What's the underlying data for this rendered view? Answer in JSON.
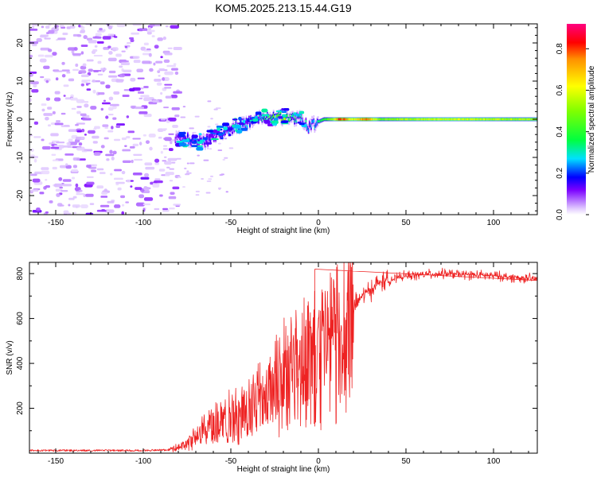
{
  "title": "KOM5.2025.213.15.44.G19",
  "colorbar": {
    "label": "Normalized spectral amplitude",
    "ticks": [
      "0.0",
      "0.2",
      "0.4",
      "0.6",
      "0.8"
    ],
    "tick_values": [
      0.0,
      0.2,
      0.4,
      0.6,
      0.8
    ],
    "range": [
      0,
      0.92
    ],
    "stops": [
      {
        "v": 0.0,
        "color": "#ffffff"
      },
      {
        "v": 0.03,
        "color": "#e0c8ff"
      },
      {
        "v": 0.12,
        "color": "#7a00ff"
      },
      {
        "v": 0.18,
        "color": "#0000ff"
      },
      {
        "v": 0.27,
        "color": "#00e0ff"
      },
      {
        "v": 0.36,
        "color": "#00ff40"
      },
      {
        "v": 0.5,
        "color": "#80ff00"
      },
      {
        "v": 0.62,
        "color": "#ffff00"
      },
      {
        "v": 0.75,
        "color": "#ff9000"
      },
      {
        "v": 0.83,
        "color": "#ff0000"
      },
      {
        "v": 0.92,
        "color": "#ff0080"
      }
    ]
  },
  "chart_data": [
    {
      "type": "heatmap",
      "name": "spectrogram",
      "xlabel": "Height of straight line (km)",
      "ylabel": "Frequency (Hz)",
      "xlim": [
        -165,
        125
      ],
      "ylim": [
        -25,
        25
      ],
      "xticks": [
        -150,
        -100,
        -50,
        0,
        50,
        100
      ],
      "yticks": [
        -20,
        -10,
        0,
        10,
        20
      ],
      "ridge": [
        {
          "x": -80,
          "f": -5.0,
          "amp": 0.12
        },
        {
          "x": -72,
          "f": -5.5,
          "amp": 0.16
        },
        {
          "x": -65,
          "f": -6.0,
          "amp": 0.16
        },
        {
          "x": -60,
          "f": -4.5,
          "amp": 0.18
        },
        {
          "x": -55,
          "f": -3.5,
          "amp": 0.2
        },
        {
          "x": -50,
          "f": -2.5,
          "amp": 0.22
        },
        {
          "x": -45,
          "f": -1.5,
          "amp": 0.24
        },
        {
          "x": -40,
          "f": -1.0,
          "amp": 0.26
        },
        {
          "x": -35,
          "f": 0.0,
          "amp": 0.3
        },
        {
          "x": -30,
          "f": 0.5,
          "amp": 0.32
        },
        {
          "x": -25,
          "f": 0.5,
          "amp": 0.4
        },
        {
          "x": -20,
          "f": 0.7,
          "amp": 0.45
        },
        {
          "x": -15,
          "f": 0.7,
          "amp": 0.35
        },
        {
          "x": -10,
          "f": 0.0,
          "amp": 0.25
        },
        {
          "x": -6,
          "f": -2.0,
          "amp": 0.25
        },
        {
          "x": -2,
          "f": -1.0,
          "amp": 0.3
        },
        {
          "x": 3,
          "f": 0.0,
          "amp": 0.4
        },
        {
          "x": 8,
          "f": 0.0,
          "amp": 0.55
        },
        {
          "x": 12,
          "f": 0.0,
          "amp": 0.85
        },
        {
          "x": 20,
          "f": 0.0,
          "amp": 0.6
        },
        {
          "x": 27,
          "f": 0.0,
          "amp": 0.8
        },
        {
          "x": 35,
          "f": 0.0,
          "amp": 0.5
        },
        {
          "x": 50,
          "f": 0.0,
          "amp": 0.55
        },
        {
          "x": 60,
          "f": 0.0,
          "amp": 0.58
        },
        {
          "x": 75,
          "f": 0.0,
          "amp": 0.6
        },
        {
          "x": 90,
          "f": 0.0,
          "amp": 0.58
        },
        {
          "x": 110,
          "f": 0.0,
          "amp": 0.55
        },
        {
          "x": 125,
          "f": 0.0,
          "amp": 0.55
        }
      ]
    },
    {
      "type": "line",
      "name": "snr",
      "xlabel": "Height of straight line (km)",
      "ylabel": "SNR (v/v)",
      "xlim": [
        -165,
        125
      ],
      "ylim": [
        0,
        850
      ],
      "xticks": [
        -150,
        -100,
        -50,
        0,
        50,
        100
      ],
      "yticks": [
        200,
        400,
        600,
        800
      ],
      "color": "#ee2222",
      "envelope": [
        {
          "x": -165,
          "y": 12
        },
        {
          "x": -100,
          "y": 12
        },
        {
          "x": -85,
          "y": 15
        },
        {
          "x": -75,
          "y": 40
        },
        {
          "x": -65,
          "y": 120
        },
        {
          "x": -55,
          "y": 150
        },
        {
          "x": -45,
          "y": 180
        },
        {
          "x": -35,
          "y": 250
        },
        {
          "x": -25,
          "y": 320
        },
        {
          "x": -15,
          "y": 420
        },
        {
          "x": -5,
          "y": 470
        },
        {
          "x": 5,
          "y": 500
        },
        {
          "x": 15,
          "y": 600
        },
        {
          "x": 25,
          "y": 700
        },
        {
          "x": 35,
          "y": 760
        },
        {
          "x": 50,
          "y": 790
        },
        {
          "x": 70,
          "y": 800
        },
        {
          "x": 100,
          "y": 790
        },
        {
          "x": 125,
          "y": 775
        }
      ],
      "spikes": [
        {
          "x": -2,
          "y": 820
        },
        {
          "x": -2,
          "y": 120
        }
      ]
    }
  ]
}
